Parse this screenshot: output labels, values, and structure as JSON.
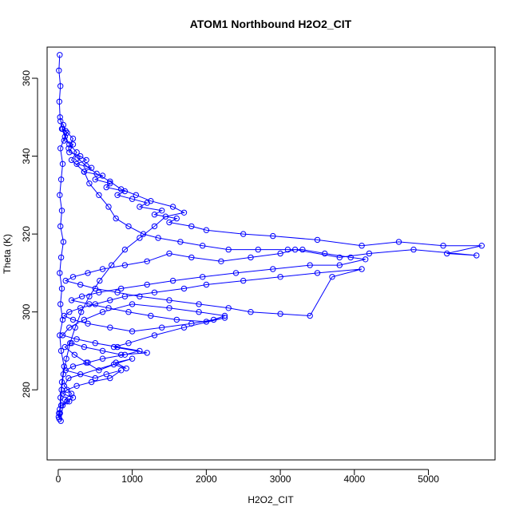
{
  "chart_data": {
    "type": "scatter",
    "title": "ATOM1 Northbound H2O2_CIT",
    "xlabel": "H2O2_CIT",
    "ylabel": "Theta (K)",
    "xlim": [
      -150,
      5900
    ],
    "ylim": [
      262,
      368
    ],
    "x_ticks": [
      0,
      1000,
      2000,
      3000,
      4000,
      5000
    ],
    "x_tick_labels": [
      "0",
      "1000",
      "2000",
      "3000",
      "4000",
      "5000"
    ],
    "y_ticks": [
      280,
      300,
      320,
      340,
      360
    ],
    "y_tick_labels": [
      "280",
      "300",
      "320",
      "340",
      "360"
    ],
    "grid": false,
    "marker": "open-circle",
    "connected": true,
    "color": "#0000ff",
    "series": [
      {
        "points": [
          [
            20,
            366
          ],
          [
            10,
            362
          ],
          [
            30,
            358
          ],
          [
            15,
            354
          ],
          [
            25,
            350
          ],
          [
            60,
            347
          ],
          [
            120,
            346
          ],
          [
            80,
            344
          ],
          [
            200,
            343
          ],
          [
            150,
            341
          ],
          [
            300,
            340
          ],
          [
            380,
            339
          ],
          [
            250,
            338
          ],
          [
            450,
            337
          ],
          [
            350,
            336
          ],
          [
            600,
            335
          ],
          [
            500,
            334
          ],
          [
            700,
            333
          ],
          [
            650,
            332
          ],
          [
            900,
            331
          ],
          [
            800,
            330
          ],
          [
            1000,
            329
          ],
          [
            1200,
            328
          ],
          [
            1100,
            327
          ],
          [
            1400,
            326
          ],
          [
            1300,
            325
          ],
          [
            1600,
            324
          ],
          [
            1500,
            323
          ],
          [
            1800,
            322
          ],
          [
            2000,
            321
          ],
          [
            2500,
            320
          ],
          [
            2900,
            319.5
          ],
          [
            3500,
            318.5
          ],
          [
            4100,
            317
          ],
          [
            4600,
            318
          ],
          [
            5200,
            317
          ],
          [
            5720,
            317
          ],
          [
            5250,
            315
          ],
          [
            5650,
            314.5
          ],
          [
            4800,
            316
          ],
          [
            4200,
            315
          ],
          [
            3800,
            314
          ],
          [
            3200,
            316
          ],
          [
            3000,
            315
          ],
          [
            2600,
            314
          ],
          [
            2200,
            313
          ],
          [
            1800,
            314
          ],
          [
            1500,
            315
          ],
          [
            1200,
            313
          ],
          [
            900,
            312
          ],
          [
            600,
            311
          ],
          [
            400,
            310
          ],
          [
            200,
            309
          ],
          [
            100,
            308
          ],
          [
            300,
            307
          ],
          [
            500,
            306
          ],
          [
            800,
            305
          ],
          [
            1100,
            304
          ],
          [
            1500,
            303
          ],
          [
            1900,
            302
          ],
          [
            2300,
            301
          ],
          [
            2600,
            300
          ],
          [
            3000,
            299.5
          ],
          [
            3400,
            299
          ],
          [
            3700,
            309
          ],
          [
            4100,
            311
          ],
          [
            3500,
            310
          ],
          [
            3000,
            309
          ],
          [
            2500,
            308
          ],
          [
            2000,
            307
          ],
          [
            1700,
            306
          ],
          [
            1300,
            305
          ],
          [
            900,
            304
          ],
          [
            700,
            303
          ],
          [
            500,
            302
          ],
          [
            300,
            301
          ],
          [
            150,
            300
          ],
          [
            80,
            299
          ],
          [
            200,
            298
          ],
          [
            400,
            297
          ],
          [
            700,
            296
          ],
          [
            1000,
            295
          ],
          [
            1400,
            296
          ],
          [
            1800,
            297
          ],
          [
            2100,
            298
          ],
          [
            2250,
            299
          ],
          [
            1900,
            300
          ],
          [
            1500,
            301
          ],
          [
            1000,
            302
          ],
          [
            600,
            300
          ],
          [
            350,
            298
          ],
          [
            150,
            296
          ],
          [
            60,
            294
          ],
          [
            250,
            293
          ],
          [
            500,
            292
          ],
          [
            800,
            291
          ],
          [
            1100,
            290
          ],
          [
            900,
            289
          ],
          [
            600,
            288
          ],
          [
            400,
            287
          ],
          [
            200,
            286
          ],
          [
            100,
            285
          ],
          [
            300,
            284
          ],
          [
            500,
            283
          ],
          [
            650,
            284
          ],
          [
            850,
            285
          ],
          [
            700,
            283
          ],
          [
            450,
            282
          ],
          [
            250,
            281
          ],
          [
            120,
            280
          ],
          [
            60,
            279
          ],
          [
            200,
            278
          ],
          [
            120,
            277
          ],
          [
            40,
            276
          ],
          [
            20,
            275
          ],
          [
            10,
            274
          ],
          [
            5,
            273
          ],
          [
            15,
            272.5
          ],
          [
            30,
            278
          ],
          [
            50,
            282
          ],
          [
            80,
            286
          ],
          [
            40,
            290
          ],
          [
            20,
            294
          ],
          [
            60,
            298
          ],
          [
            30,
            302
          ],
          [
            50,
            306
          ],
          [
            20,
            310
          ],
          [
            40,
            314
          ],
          [
            70,
            318
          ],
          [
            30,
            322
          ],
          [
            50,
            326
          ],
          [
            20,
            330
          ],
          [
            40,
            334
          ],
          [
            60,
            338
          ],
          [
            30,
            342
          ],
          [
            90,
            345
          ],
          [
            50,
            347
          ],
          [
            150,
            343
          ],
          [
            250,
            341
          ],
          [
            180,
            339
          ],
          [
            350,
            336
          ],
          [
            420,
            333
          ],
          [
            550,
            330
          ],
          [
            680,
            327
          ],
          [
            780,
            324
          ],
          [
            950,
            322
          ],
          [
            1150,
            320
          ],
          [
            1350,
            319
          ],
          [
            1650,
            318
          ],
          [
            1950,
            317
          ],
          [
            2300,
            316
          ],
          [
            2700,
            316
          ],
          [
            3100,
            316
          ],
          [
            3300,
            316
          ],
          [
            3600,
            315
          ],
          [
            3950,
            314
          ],
          [
            4150,
            313.5
          ],
          [
            3800,
            312
          ],
          [
            3400,
            312
          ],
          [
            2900,
            311
          ],
          [
            2400,
            310
          ],
          [
            1950,
            309
          ],
          [
            1550,
            308
          ],
          [
            1200,
            307
          ],
          [
            850,
            306
          ],
          [
            550,
            305
          ],
          [
            320,
            304
          ],
          [
            180,
            303
          ],
          [
            420,
            302
          ],
          [
            680,
            301
          ],
          [
            950,
            300
          ],
          [
            1250,
            299
          ],
          [
            1600,
            298
          ],
          [
            2000,
            297.5
          ],
          [
            2250,
            298.5
          ],
          [
            1700,
            296
          ],
          [
            1300,
            294
          ],
          [
            950,
            292
          ],
          [
            750,
            291
          ],
          [
            1200,
            289.5
          ],
          [
            850,
            289
          ],
          [
            600,
            290
          ],
          [
            350,
            291
          ],
          [
            180,
            292
          ],
          [
            90,
            291
          ],
          [
            220,
            289
          ],
          [
            380,
            287
          ],
          [
            550,
            285
          ],
          [
            750,
            286.5
          ],
          [
            920,
            285.5
          ],
          [
            780,
            287
          ],
          [
            1000,
            288
          ],
          [
            140,
            283
          ],
          [
            80,
            281
          ],
          [
            180,
            279
          ],
          [
            90,
            277.5
          ],
          [
            150,
            277
          ],
          [
            60,
            276
          ],
          [
            35,
            272
          ],
          [
            25,
            274
          ],
          [
            45,
            280
          ],
          [
            70,
            284
          ],
          [
            110,
            288
          ],
          [
            160,
            292
          ],
          [
            230,
            296
          ],
          [
            310,
            300
          ],
          [
            420,
            304
          ],
          [
            560,
            308
          ],
          [
            720,
            312
          ],
          [
            900,
            316
          ],
          [
            1100,
            319
          ],
          [
            1300,
            322
          ],
          [
            1450,
            324.5
          ],
          [
            1700,
            325.5
          ],
          [
            1550,
            327
          ],
          [
            1250,
            328.5
          ],
          [
            1050,
            330
          ],
          [
            850,
            331.5
          ],
          [
            700,
            333.5
          ],
          [
            520,
            335.5
          ],
          [
            380,
            337.5
          ],
          [
            260,
            339.5
          ],
          [
            140,
            342
          ],
          [
            200,
            344.5
          ],
          [
            100,
            346.5
          ],
          [
            70,
            348
          ],
          [
            30,
            349
          ]
        ]
      }
    ]
  }
}
